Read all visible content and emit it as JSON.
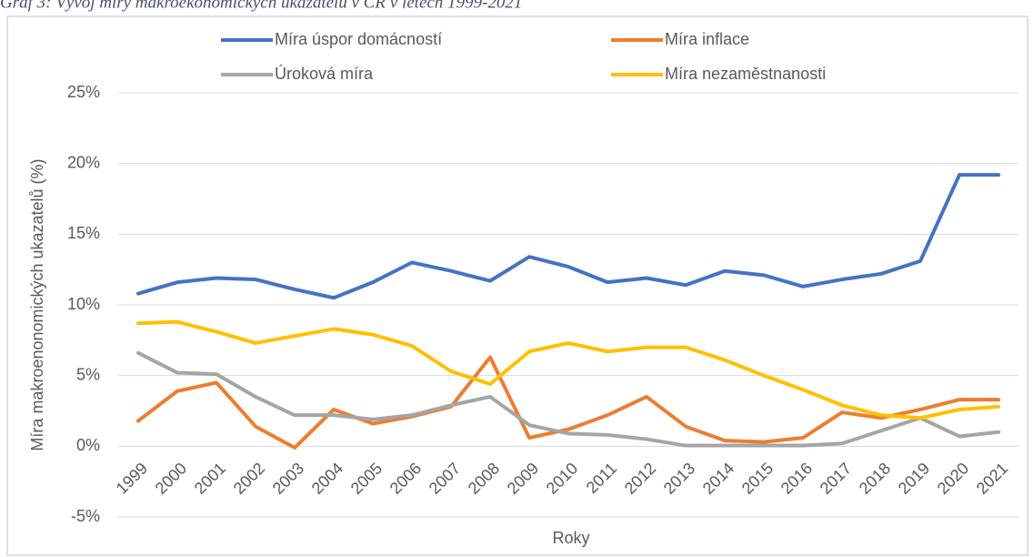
{
  "chart_data": {
    "type": "line",
    "title": "Graf 3: Vývoj míry makroekonomických ukazatelů v ČR v letech 1999-2021",
    "x_label": "Roky",
    "y_label": "Míra makroenonomických ukazatelů (%)",
    "categories": [
      "1999",
      "2000",
      "2001",
      "2002",
      "2003",
      "2004",
      "2005",
      "2006",
      "2007",
      "2008",
      "2009",
      "2010",
      "2011",
      "2012",
      "2013",
      "2014",
      "2015",
      "2016",
      "2017",
      "2018",
      "2019",
      "2020",
      "2021"
    ],
    "series": [
      {
        "name": "Míra úspor domácností",
        "color": "#4472c4",
        "values": [
          10.8,
          11.6,
          11.9,
          11.8,
          11.1,
          10.5,
          11.6,
          13.0,
          12.4,
          11.7,
          13.4,
          12.7,
          11.6,
          11.9,
          11.4,
          12.4,
          12.1,
          11.3,
          11.8,
          12.2,
          13.1,
          19.2,
          19.2
        ]
      },
      {
        "name": "Míra inflace",
        "color": "#ed7d31",
        "values": [
          1.8,
          3.9,
          4.5,
          1.4,
          -0.1,
          2.6,
          1.6,
          2.1,
          2.8,
          6.3,
          0.6,
          1.2,
          2.2,
          3.5,
          1.4,
          0.4,
          0.3,
          0.6,
          2.4,
          2.0,
          2.6,
          3.3,
          3.3
        ]
      },
      {
        "name": "Úroková míra",
        "color": "#a5a5a5",
        "values": [
          6.6,
          5.2,
          5.1,
          3.5,
          2.2,
          2.2,
          1.9,
          2.2,
          2.9,
          3.5,
          1.5,
          0.9,
          0.8,
          0.5,
          0.05,
          0.05,
          0.05,
          0.05,
          0.2,
          1.1,
          2.0,
          0.7,
          1.0
        ]
      },
      {
        "name": "Míra nezaměstnanosti",
        "color": "#ffc000",
        "values": [
          8.7,
          8.8,
          8.1,
          7.3,
          7.8,
          8.3,
          7.9,
          7.1,
          5.3,
          4.4,
          6.7,
          7.3,
          6.7,
          7.0,
          7.0,
          6.1,
          5.0,
          4.0,
          2.9,
          2.2,
          2.0,
          2.6,
          2.8
        ]
      }
    ],
    "ylim": [
      -5,
      25
    ],
    "yticks": [
      {
        "value": -5,
        "label": "-5%"
      },
      {
        "value": 0,
        "label": "0%"
      },
      {
        "value": 5,
        "label": "5%"
      },
      {
        "value": 10,
        "label": "10%"
      },
      {
        "value": 15,
        "label": "15%"
      },
      {
        "value": 20,
        "label": "20%"
      },
      {
        "value": 25,
        "label": "25%"
      }
    ],
    "grid": true
  }
}
